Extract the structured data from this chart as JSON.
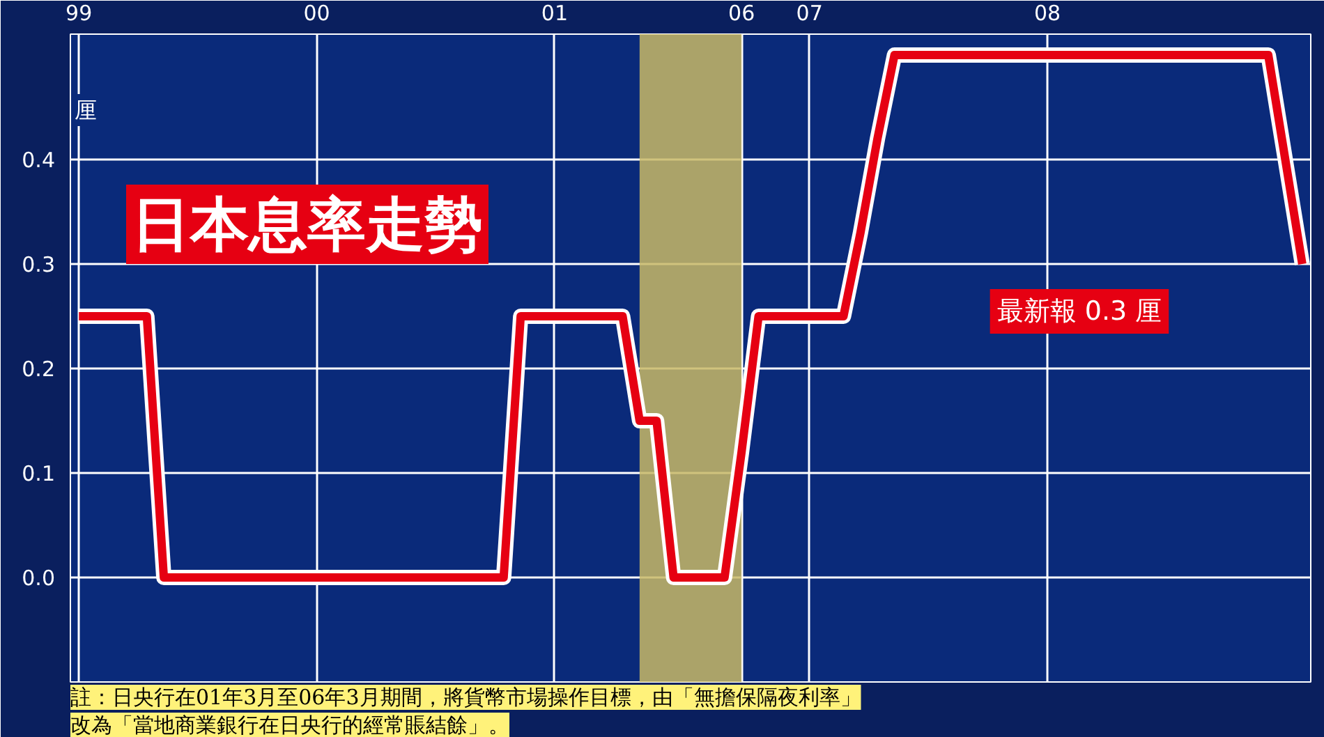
{
  "chart_data": {
    "type": "line",
    "title": "日本息率走勢",
    "ylabel": "厘",
    "categories": [
      "99",
      null,
      null,
      null,
      null,
      null,
      null,
      null,
      null,
      null,
      null,
      null,
      null,
      null,
      "00",
      null,
      null,
      null,
      null,
      null,
      null,
      null,
      null,
      null,
      null,
      null,
      null,
      null,
      "01",
      null,
      null,
      null,
      null,
      null,
      null,
      null,
      null,
      null,
      null,
      "06",
      null,
      null,
      null,
      "07",
      null,
      null,
      null,
      null,
      null,
      null,
      null,
      null,
      null,
      null,
      null,
      null,
      null,
      "08",
      null,
      null,
      null,
      null,
      null,
      null,
      null,
      null,
      null,
      null,
      null,
      null,
      null,
      null,
      null
    ],
    "series": [
      {
        "color": "#e60012",
        "values": [
          0.25,
          0.25,
          0.25,
          0.25,
          0.25,
          0,
          0,
          0,
          0,
          0,
          0,
          0,
          0,
          0,
          0,
          0,
          0,
          0,
          0,
          0,
          0,
          0,
          0,
          0,
          0,
          0,
          0.25,
          0.25,
          0.25,
          0.25,
          0.25,
          0.25,
          0.25,
          0.15,
          0.15,
          0,
          0,
          0,
          0,
          0.12,
          0.25,
          0.25,
          0.25,
          0.25,
          0.25,
          0.25,
          0.33,
          0.42,
          0.5,
          0.5,
          0.5,
          0.5,
          0.5,
          0.5,
          0.5,
          0.5,
          0.5,
          0.5,
          0.5,
          0.5,
          0.5,
          0.5,
          0.5,
          0.5,
          0.5,
          0.5,
          0.5,
          0.5,
          0.5,
          0.5,
          0.5,
          0.4,
          0.3
        ]
      }
    ],
    "ylim": [
      -0.1,
      0.52
    ],
    "yticks": [
      {
        "value": 0,
        "label": "0.0"
      },
      0.1,
      0.2,
      0.3,
      0.4
    ],
    "annotations": [
      "最新報 0.3 厘",
      "註：日央行在01年3月至06年3月期間，將貨幣市場操作目標，由「無擔保隔夜利率」改為「當地商業銀行在日央行的經常賬結餘」。"
    ],
    "grid": true,
    "marker": "none",
    "line_style": "solid"
  }
}
